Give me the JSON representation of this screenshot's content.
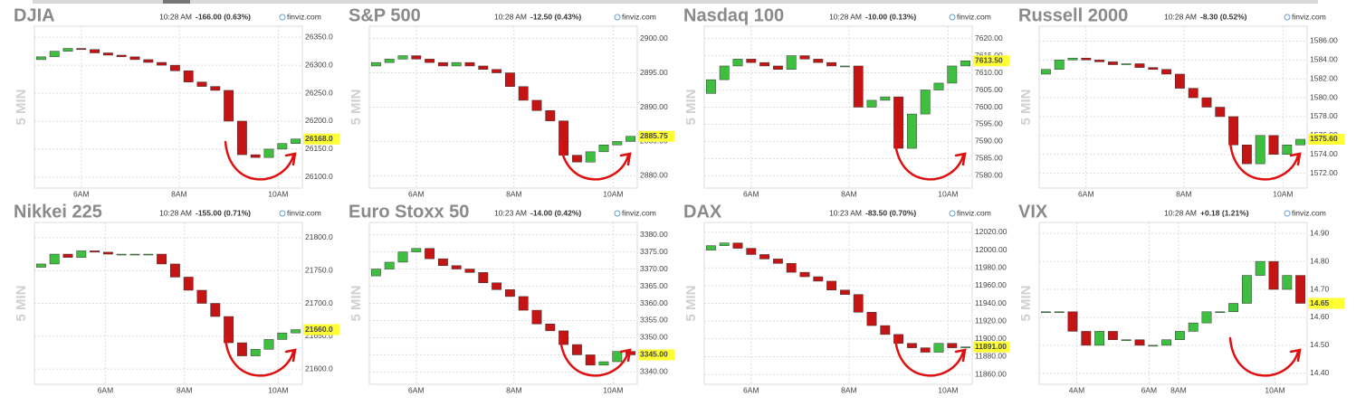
{
  "chart_data": [
    {
      "type": "candlestick",
      "title": "DJIA",
      "time": "10:28 AM",
      "change": "-166.00 (0.63%)",
      "change_color": "#dd1111",
      "source": "finviz.com",
      "side_label": "5 MIN",
      "colors": {
        "up": "#3fbf3f",
        "down": "#c41414"
      },
      "xlim": [
        -0.5,
        19.5
      ],
      "xticks": [
        {
          "value": 3,
          "label": "6AM"
        },
        {
          "value": 10.3,
          "label": "8AM"
        },
        {
          "value": 17.7,
          "label": "10AM"
        }
      ],
      "ylim": [
        26090,
        26360
      ],
      "yticks": [
        {
          "value": 26100,
          "label": "26100.0"
        },
        {
          "value": 26150,
          "label": "26150.0"
        },
        {
          "value": 26200,
          "label": "26200.0"
        },
        {
          "value": 26250,
          "label": "26250.0"
        },
        {
          "value": 26300,
          "label": "26300.0"
        },
        {
          "value": 26350,
          "label": "26350.0"
        }
      ],
      "last_price": {
        "value": 26168,
        "label": "26168.0"
      },
      "open": [
        26310,
        26315,
        26325,
        26330,
        26328,
        26322,
        26318,
        26315,
        26310,
        26305,
        26300,
        26290,
        26270,
        26262,
        26255,
        26200,
        26140,
        26135,
        26150,
        26160
      ],
      "close": [
        26315,
        26325,
        26330,
        26328,
        26322,
        26318,
        26315,
        26310,
        26305,
        26300,
        26290,
        26270,
        26262,
        26255,
        26200,
        26140,
        26135,
        26150,
        26160,
        26168
      ]
    },
    {
      "type": "candlestick",
      "title": "S&P 500",
      "time": "10:28 AM",
      "change": "-12.50 (0.43%)",
      "change_color": "#dd1111",
      "source": "finviz.com",
      "side_label": "5 MIN",
      "colors": {
        "up": "#3fbf3f",
        "down": "#c41414"
      },
      "xlim": [
        -0.5,
        19.5
      ],
      "xticks": [
        {
          "value": 3,
          "label": "6AM"
        },
        {
          "value": 10.3,
          "label": "8AM"
        },
        {
          "value": 17.7,
          "label": "10AM"
        }
      ],
      "ylim": [
        2879,
        2901
      ],
      "yticks": [
        {
          "value": 2880,
          "label": "2880.00"
        },
        {
          "value": 2885,
          "label": "2885.00"
        },
        {
          "value": 2890,
          "label": "2890.00"
        },
        {
          "value": 2895,
          "label": "2895.00"
        },
        {
          "value": 2900,
          "label": "2900.00"
        }
      ],
      "last_price": {
        "value": 2885.75,
        "label": "2885.75"
      },
      "open": [
        2896,
        2896.5,
        2897,
        2897.5,
        2897,
        2896.5,
        2896,
        2896.5,
        2896,
        2895.5,
        2895,
        2893,
        2891,
        2889.5,
        2888,
        2883,
        2882,
        2883.5,
        2884.5,
        2885
      ],
      "close": [
        2896.5,
        2897,
        2897.5,
        2897,
        2896.5,
        2896,
        2896.5,
        2896,
        2895.5,
        2895,
        2893,
        2891,
        2889.5,
        2888,
        2883,
        2882,
        2883.5,
        2884.5,
        2885,
        2885.75
      ]
    },
    {
      "type": "candlestick",
      "title": "Nasdaq 100",
      "time": "10:28 AM",
      "change": "-10.00 (0.13%)",
      "change_color": "#dd1111",
      "source": "finviz.com",
      "side_label": "5 MIN",
      "colors": {
        "up": "#3fbf3f",
        "down": "#c41414"
      },
      "xlim": [
        -0.5,
        19.5
      ],
      "xticks": [
        {
          "value": 3,
          "label": "6AM"
        },
        {
          "value": 10.3,
          "label": "8AM"
        },
        {
          "value": 17.7,
          "label": "10AM"
        }
      ],
      "ylim": [
        7578,
        7622
      ],
      "yticks": [
        {
          "value": 7580,
          "label": "7580.00"
        },
        {
          "value": 7585,
          "label": "7585.00"
        },
        {
          "value": 7590,
          "label": "7590.00"
        },
        {
          "value": 7595,
          "label": "7595.00"
        },
        {
          "value": 7600,
          "label": "7600.00"
        },
        {
          "value": 7605,
          "label": "7605.00"
        },
        {
          "value": 7610,
          "label": "7610.00"
        },
        {
          "value": 7615,
          "label": "7615.00"
        },
        {
          "value": 7620,
          "label": "7620.00"
        }
      ],
      "last_price": {
        "value": 7613.5,
        "label": "7613.50"
      },
      "open": [
        7604,
        7608,
        7612,
        7614,
        7613,
        7612,
        7611,
        7615,
        7614,
        7613,
        7612,
        7612,
        7600,
        7602,
        7603,
        7588,
        7598,
        7605,
        7607,
        7612
      ],
      "close": [
        7608,
        7612,
        7614,
        7613,
        7612,
        7611,
        7615,
        7614,
        7613,
        7612,
        7612,
        7600,
        7602,
        7603,
        7588,
        7598,
        7605,
        7607,
        7612,
        7613.5
      ]
    },
    {
      "type": "candlestick",
      "title": "Russell 2000",
      "time": "10:28 AM",
      "change": "-8.30 (0.52%)",
      "change_color": "#dd1111",
      "source": "finviz.com",
      "side_label": "5 MIN",
      "colors": {
        "up": "#3fbf3f",
        "down": "#c41414"
      },
      "xlim": [
        -0.5,
        19.5
      ],
      "xticks": [
        {
          "value": 3,
          "label": "6AM"
        },
        {
          "value": 10.3,
          "label": "8AM"
        },
        {
          "value": 17.7,
          "label": "10AM"
        }
      ],
      "ylim": [
        1571,
        1587
      ],
      "yticks": [
        {
          "value": 1572,
          "label": "1572.00"
        },
        {
          "value": 1574,
          "label": "1574.00"
        },
        {
          "value": 1576,
          "label": "1576.00"
        },
        {
          "value": 1578,
          "label": "1578.00"
        },
        {
          "value": 1580,
          "label": "1580.00"
        },
        {
          "value": 1582,
          "label": "1582.00"
        },
        {
          "value": 1584,
          "label": "1584.00"
        },
        {
          "value": 1586,
          "label": "1586.00"
        }
      ],
      "last_price": {
        "value": 1575.6,
        "label": "1575.60"
      },
      "open": [
        1582.5,
        1583,
        1584,
        1584.2,
        1584,
        1583.8,
        1583.5,
        1583.6,
        1583.2,
        1583,
        1582.5,
        1581,
        1580,
        1579,
        1578,
        1575,
        1573,
        1576,
        1574,
        1575
      ],
      "close": [
        1583,
        1584,
        1584.2,
        1584,
        1583.8,
        1583.5,
        1583.6,
        1583.2,
        1583,
        1582.5,
        1581,
        1580,
        1579,
        1578,
        1575,
        1573,
        1576,
        1574,
        1575,
        1575.6
      ]
    },
    {
      "type": "candlestick",
      "title": "Nikkei 225",
      "time": "10:28 AM",
      "change": "-155.00 (0.71%)",
      "change_color": "#dd1111",
      "source": "finviz.com",
      "side_label": "5 MIN",
      "colors": {
        "up": "#3fbf3f",
        "down": "#c41414"
      },
      "xlim": [
        -0.5,
        19.5
      ],
      "xticks": [
        {
          "value": 4.8,
          "label": "6AM"
        },
        {
          "value": 10.7,
          "label": "8AM"
        },
        {
          "value": 17.7,
          "label": "10AM"
        }
      ],
      "ylim": [
        21585,
        21815
      ],
      "yticks": [
        {
          "value": 21600,
          "label": "21600.0"
        },
        {
          "value": 21650,
          "label": "21650.0"
        },
        {
          "value": 21700,
          "label": "21700.0"
        },
        {
          "value": 21750,
          "label": "21750.0"
        },
        {
          "value": 21800,
          "label": "21800.0"
        }
      ],
      "last_price": {
        "value": 21660,
        "label": "21660.0"
      },
      "open": [
        21755,
        21760,
        21775,
        21770,
        21780,
        21778,
        21775,
        21775,
        21775,
        21775,
        21760,
        21740,
        21720,
        21700,
        21680,
        21640,
        21620,
        21630,
        21645,
        21655
      ],
      "close": [
        21760,
        21775,
        21770,
        21780,
        21778,
        21775,
        21775,
        21775,
        21775,
        21760,
        21740,
        21720,
        21700,
        21680,
        21640,
        21620,
        21630,
        21645,
        21655,
        21660
      ]
    },
    {
      "type": "candlestick",
      "title": "Euro Stoxx 50",
      "time": "10:23 AM",
      "change": "-14.00 (0.42%)",
      "change_color": "#dd1111",
      "source": "finviz.com",
      "side_label": "5 MIN",
      "colors": {
        "up": "#3fbf3f",
        "down": "#c41414"
      },
      "xlim": [
        -0.5,
        19.5
      ],
      "xticks": [
        {
          "value": 3,
          "label": "6AM"
        },
        {
          "value": 10.3,
          "label": "8AM"
        },
        {
          "value": 17.7,
          "label": "10AM"
        }
      ],
      "ylim": [
        3338,
        3382
      ],
      "yticks": [
        {
          "value": 3340,
          "label": "3340.00"
        },
        {
          "value": 3345,
          "label": "3345.00"
        },
        {
          "value": 3350,
          "label": "3350.00"
        },
        {
          "value": 3355,
          "label": "3355.00"
        },
        {
          "value": 3360,
          "label": "3360.00"
        },
        {
          "value": 3365,
          "label": "3365.00"
        },
        {
          "value": 3370,
          "label": "3370.00"
        },
        {
          "value": 3375,
          "label": "3375.00"
        },
        {
          "value": 3380,
          "label": "3380.00"
        }
      ],
      "last_price": {
        "value": 3345,
        "label": "3345.00"
      },
      "open": [
        3368,
        3370,
        3372,
        3375,
        3376,
        3373,
        3371,
        3370,
        3369,
        3366,
        3364,
        3362,
        3358,
        3354,
        3352,
        3348,
        3345,
        3342,
        3343,
        3346
      ],
      "close": [
        3370,
        3372,
        3375,
        3376,
        3373,
        3371,
        3370,
        3369,
        3366,
        3364,
        3362,
        3358,
        3354,
        3352,
        3348,
        3345,
        3342,
        3343,
        3346,
        3345
      ]
    },
    {
      "type": "candlestick",
      "title": "DAX",
      "time": "10:23 AM",
      "change": "-83.50 (0.70%)",
      "change_color": "#dd1111",
      "source": "finviz.com",
      "side_label": "5 MIN",
      "colors": {
        "up": "#3fbf3f",
        "down": "#c41414"
      },
      "xlim": [
        -0.5,
        19.5
      ],
      "xticks": [
        {
          "value": 3,
          "label": "6AM"
        },
        {
          "value": 10.3,
          "label": "8AM"
        },
        {
          "value": 17.7,
          "label": "10AM"
        }
      ],
      "ylim": [
        11855,
        12025
      ],
      "yticks": [
        {
          "value": 11860,
          "label": "11860.00"
        },
        {
          "value": 11880,
          "label": "11880.00"
        },
        {
          "value": 11900,
          "label": "11900.00"
        },
        {
          "value": 11920,
          "label": "11920.00"
        },
        {
          "value": 11940,
          "label": "11940.00"
        },
        {
          "value": 11960,
          "label": "11960.00"
        },
        {
          "value": 11980,
          "label": "11980.00"
        },
        {
          "value": 12000,
          "label": "12000.00"
        },
        {
          "value": 12020,
          "label": "12020.00"
        }
      ],
      "last_price": {
        "value": 11891,
        "label": "11891.00"
      },
      "open": [
        12000,
        12005,
        12008,
        12002,
        11995,
        11990,
        11985,
        11975,
        11970,
        11965,
        11955,
        11950,
        11930,
        11915,
        11905,
        11895,
        11890,
        11885,
        11895,
        11890
      ],
      "close": [
        12005,
        12008,
        12002,
        11995,
        11990,
        11985,
        11975,
        11970,
        11965,
        11955,
        11950,
        11930,
        11915,
        11905,
        11895,
        11890,
        11885,
        11895,
        11890,
        11891
      ]
    },
    {
      "type": "candlestick",
      "title": "VIX",
      "time": "10:28 AM",
      "change": "+0.18 (1.21%)",
      "change_color": "#22aa22",
      "source": "finviz.com",
      "side_label": "5 MIN",
      "colors": {
        "up": "#3fbf3f",
        "down": "#c41414"
      },
      "xlim": [
        -0.5,
        19.5
      ],
      "xticks": [
        {
          "value": 2.3,
          "label": "4AM"
        },
        {
          "value": 7.7,
          "label": "6AM"
        },
        {
          "value": 9.9,
          "label": "8AM"
        },
        {
          "value": 17.1,
          "label": "10AM"
        }
      ],
      "ylim": [
        14.38,
        14.92
      ],
      "yticks": [
        {
          "value": 14.4,
          "label": "14.40"
        },
        {
          "value": 14.5,
          "label": "14.50"
        },
        {
          "value": 14.6,
          "label": "14.60"
        },
        {
          "value": 14.7,
          "label": "14.70"
        },
        {
          "value": 14.8,
          "label": "14.80"
        },
        {
          "value": 14.9,
          "label": "14.90"
        }
      ],
      "last_price": {
        "value": 14.65,
        "label": "14.65"
      },
      "open": [
        14.62,
        14.62,
        14.62,
        14.55,
        14.5,
        14.55,
        14.52,
        14.52,
        14.5,
        14.5,
        14.52,
        14.55,
        14.58,
        14.62,
        14.62,
        14.65,
        14.75,
        14.8,
        14.7,
        14.75
      ],
      "close": [
        14.62,
        14.62,
        14.55,
        14.5,
        14.55,
        14.52,
        14.52,
        14.5,
        14.5,
        14.52,
        14.55,
        14.58,
        14.62,
        14.62,
        14.65,
        14.75,
        14.8,
        14.7,
        14.75,
        14.65
      ]
    }
  ]
}
